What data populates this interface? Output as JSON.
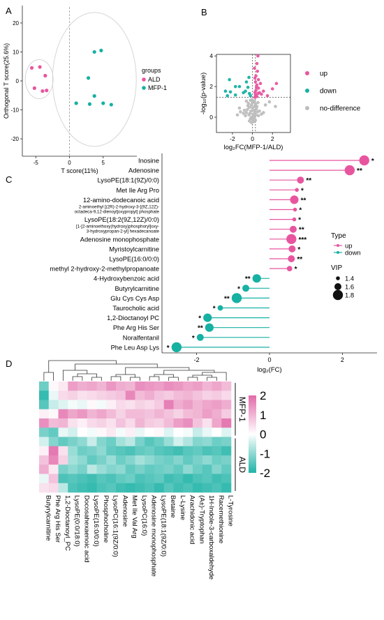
{
  "panels": {
    "a": "A",
    "b": "B",
    "c": "C",
    "d": "D"
  },
  "colors": {
    "up": "#e8559f",
    "down": "#16b1a3",
    "grey": "#bdbdbd",
    "hi": "#e26aa9",
    "lo": "#1fb3a6",
    "mid": "#ffffff"
  },
  "chart_data": [
    {
      "type": "scatter",
      "panel": "A",
      "xlabel": "T score(11%)",
      "ylabel": "Orthogonal T score(25.6%)",
      "xticks": [
        -5,
        0,
        5
      ],
      "yticks": [
        -20,
        -10,
        0,
        10,
        20
      ],
      "xlim": [
        -7,
        10
      ],
      "ylim": [
        -26,
        26
      ],
      "legend_title": "groups",
      "series": [
        {
          "name": "ALD",
          "color": "#e8559f",
          "points": [
            [
              -5.6,
              4.5
            ],
            [
              -4.4,
              4.8
            ],
            [
              -3.6,
              1.8
            ],
            [
              -5.2,
              -2.5
            ],
            [
              -4.0,
              -3.5
            ],
            [
              -3.4,
              -3.3
            ]
          ]
        },
        {
          "name": "MFP-1",
          "color": "#16b1a3",
          "points": [
            [
              3.7,
              10.0
            ],
            [
              4.7,
              10.5
            ],
            [
              2.8,
              1.0
            ],
            [
              1.0,
              -7.7
            ],
            [
              3.0,
              -8.0
            ],
            [
              3.7,
              -5.2
            ],
            [
              5.0,
              -7.7
            ],
            [
              6.2,
              -8.2
            ]
          ]
        }
      ]
    },
    {
      "type": "scatter",
      "panel": "B",
      "xlabel": "log₂FC(MFP-1/ALD)",
      "ylabel": "-log₁₀(p-value)",
      "xticks": [
        -2,
        0,
        2
      ],
      "yticks": [
        0,
        2,
        4
      ],
      "xlim": [
        -3.6,
        3.8
      ],
      "ylim": [
        -1.0,
        4.1
      ],
      "legend": [
        "up",
        "down",
        "no-difference"
      ],
      "series": [
        {
          "name": "up",
          "color": "#e8559f",
          "points": [
            [
              0.55,
              4.0
            ],
            [
              0.45,
              3.5
            ],
            [
              0.2,
              3.2
            ],
            [
              0.5,
              3.0
            ],
            [
              0.35,
              2.7
            ],
            [
              0.25,
              2.55
            ],
            [
              0.6,
              2.45
            ],
            [
              0.3,
              2.3
            ],
            [
              0.8,
              2.2
            ],
            [
              0.45,
              2.1
            ],
            [
              2.4,
              2.2
            ],
            [
              2.0,
              1.85
            ],
            [
              1.1,
              1.7
            ],
            [
              0.7,
              1.6
            ],
            [
              0.35,
              1.75
            ],
            [
              0.55,
              1.55
            ],
            [
              0.3,
              1.45
            ],
            [
              0.9,
              1.5
            ],
            [
              0.45,
              1.35
            ],
            [
              0.25,
              1.3
            ],
            [
              1.5,
              1.4
            ],
            [
              0.6,
              1.9
            ],
            [
              0.4,
              1.95
            ],
            [
              0.25,
              1.62
            ]
          ]
        },
        {
          "name": "down",
          "color": "#16b1a3",
          "points": [
            [
              -2.3,
              2.45
            ],
            [
              -1.7,
              2.0
            ],
            [
              -1.3,
              2.0
            ],
            [
              -2.7,
              1.7
            ],
            [
              -2.2,
              1.65
            ],
            [
              -0.6,
              2.3
            ],
            [
              -0.45,
              1.95
            ],
            [
              -0.9,
              1.6
            ],
            [
              -1.7,
              1.45
            ],
            [
              -2.5,
              1.4
            ],
            [
              -0.3,
              1.55
            ],
            [
              -0.2,
              1.4
            ],
            [
              -0.35,
              2.6
            ],
            [
              -0.7,
              1.7
            ]
          ]
        },
        {
          "name": "no-difference",
          "color": "#bdbdbd",
          "points": [
            [
              -0.2,
              1.1
            ],
            [
              0.1,
              1.0
            ],
            [
              -0.4,
              0.9
            ],
            [
              0.3,
              0.85
            ],
            [
              -0.1,
              0.8
            ],
            [
              0.2,
              0.7
            ],
            [
              -0.3,
              0.65
            ],
            [
              0.0,
              0.6
            ],
            [
              0.4,
              0.55
            ],
            [
              -0.5,
              0.5
            ],
            [
              0.15,
              0.45
            ],
            [
              -0.15,
              0.4
            ],
            [
              0.5,
              0.35
            ],
            [
              -0.6,
              0.3
            ],
            [
              0.25,
              0.3
            ],
            [
              -0.25,
              0.25
            ],
            [
              0.05,
              0.2
            ],
            [
              0.35,
              0.15
            ],
            [
              -0.35,
              0.15
            ],
            [
              0.6,
              0.1
            ],
            [
              -0.7,
              0.1
            ],
            [
              0.1,
              0.05
            ],
            [
              -0.1,
              0.0
            ],
            [
              0.2,
              -0.05
            ],
            [
              -0.2,
              -0.1
            ],
            [
              0.0,
              -0.15
            ],
            [
              0.3,
              -0.2
            ],
            [
              -0.3,
              -0.25
            ],
            [
              0.1,
              -0.3
            ],
            [
              -0.1,
              -0.35
            ],
            [
              0.45,
              0.7
            ],
            [
              -0.45,
              0.75
            ],
            [
              0.7,
              0.4
            ],
            [
              -0.8,
              0.45
            ],
            [
              0.9,
              0.2
            ],
            [
              -0.9,
              0.25
            ],
            [
              1.1,
              0.3
            ],
            [
              -1.2,
              0.35
            ],
            [
              0.0,
              0.95
            ],
            [
              0.2,
              1.05
            ],
            [
              -0.05,
              1.15
            ],
            [
              1.7,
              1.0
            ],
            [
              2.3,
              0.7
            ],
            [
              -1.3,
              0.6
            ],
            [
              0.55,
              0.95
            ],
            [
              -0.6,
              1.05
            ],
            [
              1.3,
              0.8
            ],
            [
              -1.5,
              0.15
            ]
          ]
        }
      ]
    },
    {
      "type": "lollipop",
      "panel": "C",
      "xlabel": "log₂(FC)",
      "xticks": [
        -2,
        0,
        2
      ],
      "xlim": [
        -2.95,
        2.95
      ],
      "legend_type_title": "Type",
      "legend_type": [
        "up",
        "down"
      ],
      "legend_vip_title": "VIP",
      "legend_vip": [
        "1.4",
        "1.6",
        "1.8"
      ],
      "rows": [
        {
          "label": "Inosine",
          "value": 2.6,
          "vip": 1.8,
          "sig": "*",
          "type": "up"
        },
        {
          "label": "Adenosine",
          "value": 2.2,
          "vip": 1.8,
          "sig": "**",
          "type": "up"
        },
        {
          "label": "LysoPE(18:1(9Z)/0:0)",
          "value": 0.85,
          "vip": 1.6,
          "sig": "**",
          "type": "up"
        },
        {
          "label": "Met Ile Arg Pro",
          "value": 0.75,
          "vip": 1.4,
          "sig": "*",
          "type": "up"
        },
        {
          "label": "12-amino-dodecanoic acid",
          "value": 0.68,
          "vip": 1.7,
          "sig": "**",
          "type": "up"
        },
        {
          "label": "2-aminoethyl [(2R)-2-hydroxy-3-[(9Z,12Z)-octadeca-9,12-dienoyl]oxypropyl] phosphate",
          "lines": [
            "2-aminoethyl [(2R)-2-hydroxy-3-[(9Z,12Z)-",
            "octadeca-9,12-dienoyl]oxypropyl] phosphate"
          ],
          "value": 0.7,
          "vip": 1.4,
          "sig": "*",
          "type": "up"
        },
        {
          "label": "LysoPE(18:2(9Z,12Z)/0:0)",
          "value": 0.68,
          "vip": 1.4,
          "sig": "*",
          "type": "up"
        },
        {
          "label": "[1-[2-aminoethoxy(hydroxy)phosphoryl]oxy-3-hydroxypropan-2-yl] hexadecanoate",
          "lines": [
            "[1-[2-aminoethoxy(hydroxy)phosphoryl]oxy-",
            "3-hydroxypropan-2-yl] hexadecanoate"
          ],
          "value": 0.65,
          "vip": 1.6,
          "sig": "**",
          "type": "up"
        },
        {
          "label": "Adenosine monophosphate",
          "value": 0.6,
          "vip": 1.8,
          "sig": "***",
          "type": "up"
        },
        {
          "label": "Myristoylcarnitine",
          "value": 0.62,
          "vip": 1.6,
          "sig": "*",
          "type": "up"
        },
        {
          "label": "LysoPE(16:0/0:0)",
          "value": 0.6,
          "vip": 1.6,
          "sig": "**",
          "type": "up"
        },
        {
          "label": "methyl 2-hydroxy-2-methylpropanoate",
          "value": 0.55,
          "vip": 1.5,
          "sig": "*",
          "type": "up"
        },
        {
          "label": "4-Hydroxybenzoic acid",
          "value": -0.35,
          "vip": 1.7,
          "sig": "**",
          "type": "down"
        },
        {
          "label": "Butyrylcarnitine",
          "value": -0.65,
          "vip": 1.6,
          "sig": "*",
          "type": "down"
        },
        {
          "label": "Glu Cys Cys Asp",
          "value": -0.9,
          "vip": 1.8,
          "sig": "**",
          "type": "down"
        },
        {
          "label": "Taurocholic acid",
          "value": -1.35,
          "vip": 1.5,
          "sig": "*",
          "type": "down"
        },
        {
          "label": "1,2-Dioctanoyl PC",
          "value": -1.7,
          "vip": 1.7,
          "sig": "*",
          "type": "down"
        },
        {
          "label": "Phe Arg His Ser",
          "value": -1.65,
          "vip": 1.7,
          "sig": "**",
          "type": "down"
        },
        {
          "label": "Noralfentanil",
          "value": -1.9,
          "vip": 1.6,
          "sig": "*",
          "type": "down"
        },
        {
          "label": "Phe Leu Asp Lys",
          "value": -2.55,
          "vip": 1.8,
          "sig": "*",
          "type": "down"
        }
      ]
    },
    {
      "type": "heatmap",
      "panel": "D",
      "columns": [
        "Butyrylcarnitine",
        "Phe Arg His Ser",
        "1,2-Dioctanoyl_PC",
        "LysoPE(0:0/18:0)",
        "Docosahexaenoic acid",
        "LysoPE(16:0/0:0)",
        "Phosphocholine",
        "LysoPC(16:1(9Z/0:0)",
        "Adenosine",
        "Met Ile Val Arg",
        "LysoPC(16:0)",
        "Adenosine monophosphate",
        "LysoPE(18:1(9Z/0:0)",
        "Betaine",
        "L-Lysine",
        "Arachidonic acid",
        "(A±)-Tryptophan",
        "1H-Indole-3-carboxaldehyde",
        "Racemethionine",
        "L-Tyrosine"
      ],
      "row_groups": [
        {
          "label": "MFP-1",
          "rows": 6
        },
        {
          "label": "ALD",
          "rows": 6
        }
      ],
      "colorbar_ticks": [
        "2",
        "1",
        "0",
        "-1",
        "-2"
      ],
      "range": [
        -2,
        2
      ],
      "values": [
        [
          -1.3,
          0.1,
          0.3,
          1.3,
          1.1,
          1.2,
          1.0,
          1.4,
          1.1,
          1.0,
          1.5,
          1.4,
          1.3,
          1.5,
          1.4,
          1.2,
          1.3,
          1.0,
          1.2,
          0.9
        ],
        [
          -1.8,
          -0.2,
          0.5,
          0.6,
          0.4,
          0.5,
          0.6,
          0.7,
          0.8,
          1.6,
          0.9,
          1.1,
          0.8,
          0.7,
          0.9,
          1.0,
          0.8,
          0.6,
          0.7,
          0.5
        ],
        [
          -1.5,
          -0.5,
          -0.3,
          -0.1,
          -0.2,
          0.1,
          -0.1,
          0.2,
          0.5,
          0.4,
          0.6,
          0.5,
          0.7,
          1.7,
          1.1,
          1.3,
          1.0,
          1.2,
          1.3,
          1.1
        ],
        [
          0.2,
          0.1,
          1.6,
          1.2,
          1.4,
          1.0,
          1.2,
          0.9,
          0.6,
          0.9,
          0.9,
          0.8,
          1.0,
          0.8,
          0.6,
          0.9,
          1.0,
          1.3,
          1.1,
          0.7
        ],
        [
          1.5,
          0.9,
          1.0,
          0.4,
          0.2,
          0.5,
          0.6,
          0.4,
          0.8,
          0.5,
          1.0,
          0.7,
          0.6,
          0.9,
          1.3,
          1.5,
          0.8,
          0.4,
          1.2,
          1.8
        ],
        [
          -1.2,
          -1.4,
          -0.2,
          -0.4,
          0.0,
          -0.1,
          0.1,
          0.3,
          -0.1,
          0.2,
          -0.2,
          0.0,
          0.1,
          -0.3,
          0.0,
          -0.1,
          -0.5,
          -0.2,
          0.0,
          -0.3
        ],
        [
          -0.4,
          -1.1,
          -1.4,
          -1.2,
          -1.0,
          -0.5,
          -1.1,
          -1.3,
          -0.8,
          -0.6,
          -1.2,
          -1.5,
          -1.3,
          -0.9,
          -0.4,
          -0.7,
          -1.1,
          -1.0,
          -1.3,
          -1.2
        ],
        [
          0.2,
          1.8,
          0.4,
          -0.9,
          -1.3,
          -1.2,
          -1.0,
          -1.4,
          -1.5,
          -1.6,
          -1.4,
          -1.3,
          -1.5,
          -1.6,
          -1.7,
          -1.5,
          -1.4,
          -1.6,
          -1.5,
          -1.7
        ],
        [
          0.8,
          1.6,
          0.6,
          -0.8,
          -1.0,
          -1.4,
          -1.2,
          -0.9,
          -1.3,
          -1.1,
          -0.8,
          -1.0,
          -1.2,
          -1.3,
          -1.1,
          -1.4,
          -1.2,
          -1.0,
          -1.3,
          -1.2
        ],
        [
          1.1,
          0.3,
          -1.2,
          -1.0,
          -1.2,
          -0.6,
          -0.9,
          -1.1,
          -1.0,
          -1.4,
          -1.2,
          -1.4,
          -1.3,
          -1.2,
          -1.4,
          -1.0,
          -1.3,
          -1.5,
          -1.1,
          -1.4
        ],
        [
          -0.2,
          0.8,
          -1.6,
          -1.5,
          -1.6,
          -1.7,
          -1.5,
          -1.6,
          -1.4,
          -1.3,
          -1.6,
          -1.5,
          -1.4,
          -1.7,
          -1.6,
          -1.8,
          -1.6,
          -1.5,
          -1.7,
          -1.6
        ],
        [
          0.4,
          0.5,
          -0.6,
          -1.6,
          -1.7,
          -1.8,
          -1.6,
          -1.5,
          -1.7,
          -1.8,
          -1.7,
          -1.6,
          -1.8,
          -1.5,
          -1.7,
          -1.6,
          -1.8,
          -1.7,
          -1.6,
          -1.8
        ]
      ]
    }
  ]
}
